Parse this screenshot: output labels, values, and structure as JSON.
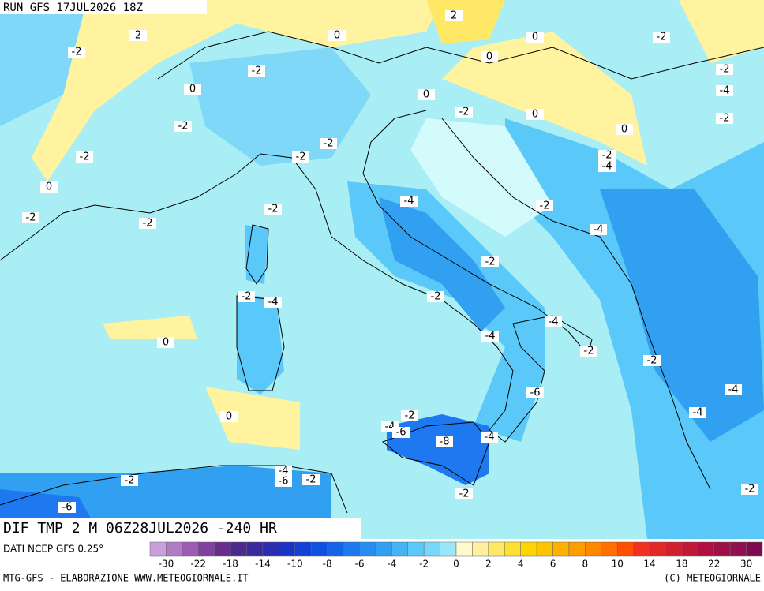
{
  "header": {
    "run": "RUN GFS 17JUL2026 18Z",
    "field": "DIF TMP 2 M 06Z28JUL2026 -240 HR",
    "source": "DATI NCEP GFS 0.25°"
  },
  "map": {
    "contour_labels": [
      "2",
      "2",
      "0",
      "0",
      "-2",
      "-2",
      "0",
      "-2",
      "-2",
      "0",
      "0",
      "-4",
      "-2",
      "-2",
      "0",
      "-2",
      "0",
      "-2",
      "-2",
      "-2",
      "-2",
      "-4",
      "0",
      "-4",
      "-2",
      "-2",
      "-2",
      "-2",
      "-4",
      "-2",
      "-2",
      "-4",
      "-2",
      "-4",
      "-4",
      "0",
      "-2",
      "-2",
      "-4",
      "-6",
      "-4",
      "0",
      "-2",
      "-4",
      "-6",
      "-4",
      "-8",
      "-4",
      "-2",
      "-6",
      "-2",
      "-2",
      "-2",
      "-6"
    ]
  },
  "colorbar": {
    "labels": [
      -30,
      -22,
      -18,
      -14,
      -10,
      -8,
      -6,
      -4,
      -2,
      0,
      2,
      4,
      6,
      8,
      10,
      14,
      18,
      22,
      30
    ],
    "colors": [
      "#c9a0dc",
      "#b07cc6",
      "#9a5cb4",
      "#8040a0",
      "#6a2c8c",
      "#4b2a8c",
      "#3a2a9c",
      "#2c2cb0",
      "#1c34c4",
      "#1440d4",
      "#1050e0",
      "#1464e8",
      "#1e78f0",
      "#288cf0",
      "#32a0f0",
      "#46b4f4",
      "#5ac8f8",
      "#78d8fa",
      "#9ae6fc",
      "#fffacd",
      "#fff0a0",
      "#ffe866",
      "#ffe030",
      "#ffd400",
      "#ffc400",
      "#ffb000",
      "#ff9c00",
      "#ff8800",
      "#ff7000",
      "#ff5000",
      "#f03020",
      "#e02828",
      "#d02030",
      "#c01838",
      "#b01040",
      "#a01048",
      "#901050",
      "#800a50"
    ]
  },
  "footer": {
    "credit": "MTG-GFS - ELABORAZIONE WWW.METEOGIORNALE.IT",
    "copyright": "(C) METEOGIORNALE"
  }
}
